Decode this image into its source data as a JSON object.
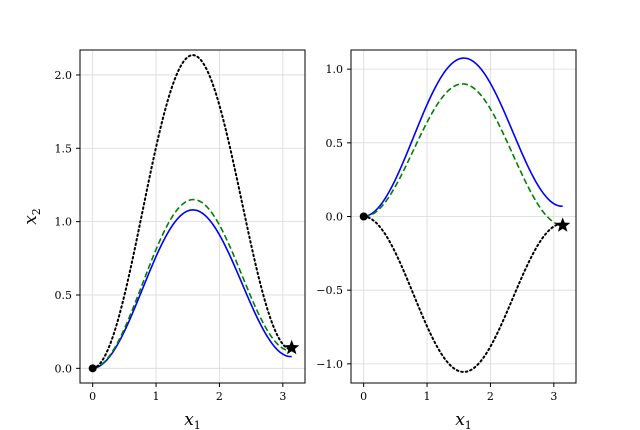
{
  "chart_data": [
    {
      "type": "line",
      "xlabel": "x",
      "xlabel_sub": "1",
      "ylabel": "x",
      "ylabel_sub": "2",
      "xlim": [
        -0.2,
        3.35
      ],
      "ylim": [
        -0.1,
        2.17
      ],
      "xticks": [
        0,
        1,
        2,
        3
      ],
      "yticks": [
        0.0,
        0.5,
        1.0,
        1.5,
        2.0
      ],
      "xtick_labels": [
        "0",
        "1",
        "2",
        "3"
      ],
      "ytick_labels": [
        "0.0",
        "0.5",
        "1.0",
        "1.5",
        "2.0"
      ],
      "grid": true,
      "series": [
        {
          "style": "solid",
          "color": "#0000ff",
          "shape": "sine-squared",
          "start": [
            0,
            0
          ],
          "end": [
            3.14,
            0.08
          ],
          "peak": 1.04
        },
        {
          "style": "dashed",
          "color": "#008000",
          "shape": "sine-squared",
          "start": [
            0,
            0
          ],
          "end": [
            3.14,
            0.12
          ],
          "peak": 1.09
        },
        {
          "style": "dotted",
          "color": "#000000",
          "shape": "sine-squared",
          "start": [
            0,
            0
          ],
          "end": [
            3.14,
            0.13
          ],
          "peak": 2.07
        }
      ],
      "markers": [
        {
          "kind": "circle",
          "x": 0,
          "y": 0,
          "color": "#000000"
        },
        {
          "kind": "star",
          "x": 3.14,
          "y": 0.14,
          "color": "#000000"
        }
      ]
    },
    {
      "type": "line",
      "xlabel": "x",
      "xlabel_sub": "1",
      "ylabel": "",
      "ylabel_sub": "",
      "xlim": [
        -0.2,
        3.35
      ],
      "ylim": [
        -1.13,
        1.13
      ],
      "xticks": [
        0,
        1,
        2,
        3
      ],
      "yticks": [
        -1.0,
        -0.5,
        0.0,
        0.5,
        1.0
      ],
      "xtick_labels": [
        "0",
        "1",
        "2",
        "3"
      ],
      "ytick_labels": [
        "−1.0",
        "−0.5",
        "0.0",
        "0.5",
        "1.0"
      ],
      "grid": true,
      "series": [
        {
          "style": "solid",
          "color": "#0000ff",
          "shape": "sine-squared",
          "start": [
            0,
            0
          ],
          "end": [
            3.14,
            0.07
          ],
          "peak": 1.04
        },
        {
          "style": "dashed",
          "color": "#008000",
          "shape": "sine-squared",
          "start": [
            0,
            0
          ],
          "end": [
            3.14,
            -0.06
          ],
          "peak": 0.93
        },
        {
          "style": "dotted",
          "color": "#000000",
          "shape": "sine-squared",
          "start": [
            0,
            0
          ],
          "end": [
            3.14,
            -0.05
          ],
          "peak": -1.03
        }
      ],
      "markers": [
        {
          "kind": "circle",
          "x": 0,
          "y": 0,
          "color": "#000000"
        },
        {
          "kind": "star",
          "x": 3.14,
          "y": -0.06,
          "color": "#000000"
        }
      ]
    }
  ]
}
